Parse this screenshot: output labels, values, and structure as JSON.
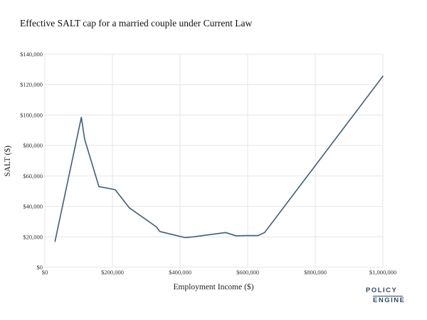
{
  "chart_data": {
    "type": "line",
    "title": "Effective SALT cap for a married couple under Current Law",
    "xlabel": "Employment Income ($)",
    "ylabel": "SALT ($)",
    "xlim": [
      0,
      1000000
    ],
    "ylim": [
      0,
      140000
    ],
    "grid": true,
    "legend": "none",
    "line_color": "#3b5f7e",
    "x_ticks": [
      {
        "value": 0,
        "label": "$0"
      },
      {
        "value": 200000,
        "label": "$200,000"
      },
      {
        "value": 400000,
        "label": "$400,000"
      },
      {
        "value": 600000,
        "label": "$600,000"
      },
      {
        "value": 800000,
        "label": "$800,000"
      },
      {
        "value": 1000000,
        "label": "$1,000,000"
      }
    ],
    "y_ticks": [
      {
        "value": 0,
        "label": "$0"
      },
      {
        "value": 20000,
        "label": "$20,000"
      },
      {
        "value": 40000,
        "label": "$40,000"
      },
      {
        "value": 60000,
        "label": "$60,000"
      },
      {
        "value": 80000,
        "label": "$80,000"
      },
      {
        "value": 100000,
        "label": "$100,000"
      },
      {
        "value": 120000,
        "label": "$120,000"
      },
      {
        "value": 140000,
        "label": "$140,000"
      }
    ],
    "series": [
      {
        "x": [
          30000,
          108000,
          118000,
          160000,
          208000,
          250000,
          330000,
          340000,
          415000,
          440000,
          490000,
          535000,
          565000,
          600000,
          630000,
          650000,
          1000000
        ],
        "y": [
          17000,
          98500,
          84000,
          53000,
          51000,
          39000,
          26500,
          23500,
          19500,
          20000,
          21500,
          22800,
          20700,
          20800,
          20800,
          22800,
          125500
        ]
      }
    ]
  },
  "logo": {
    "line1": "POLICY",
    "line2": "ENGINE"
  }
}
